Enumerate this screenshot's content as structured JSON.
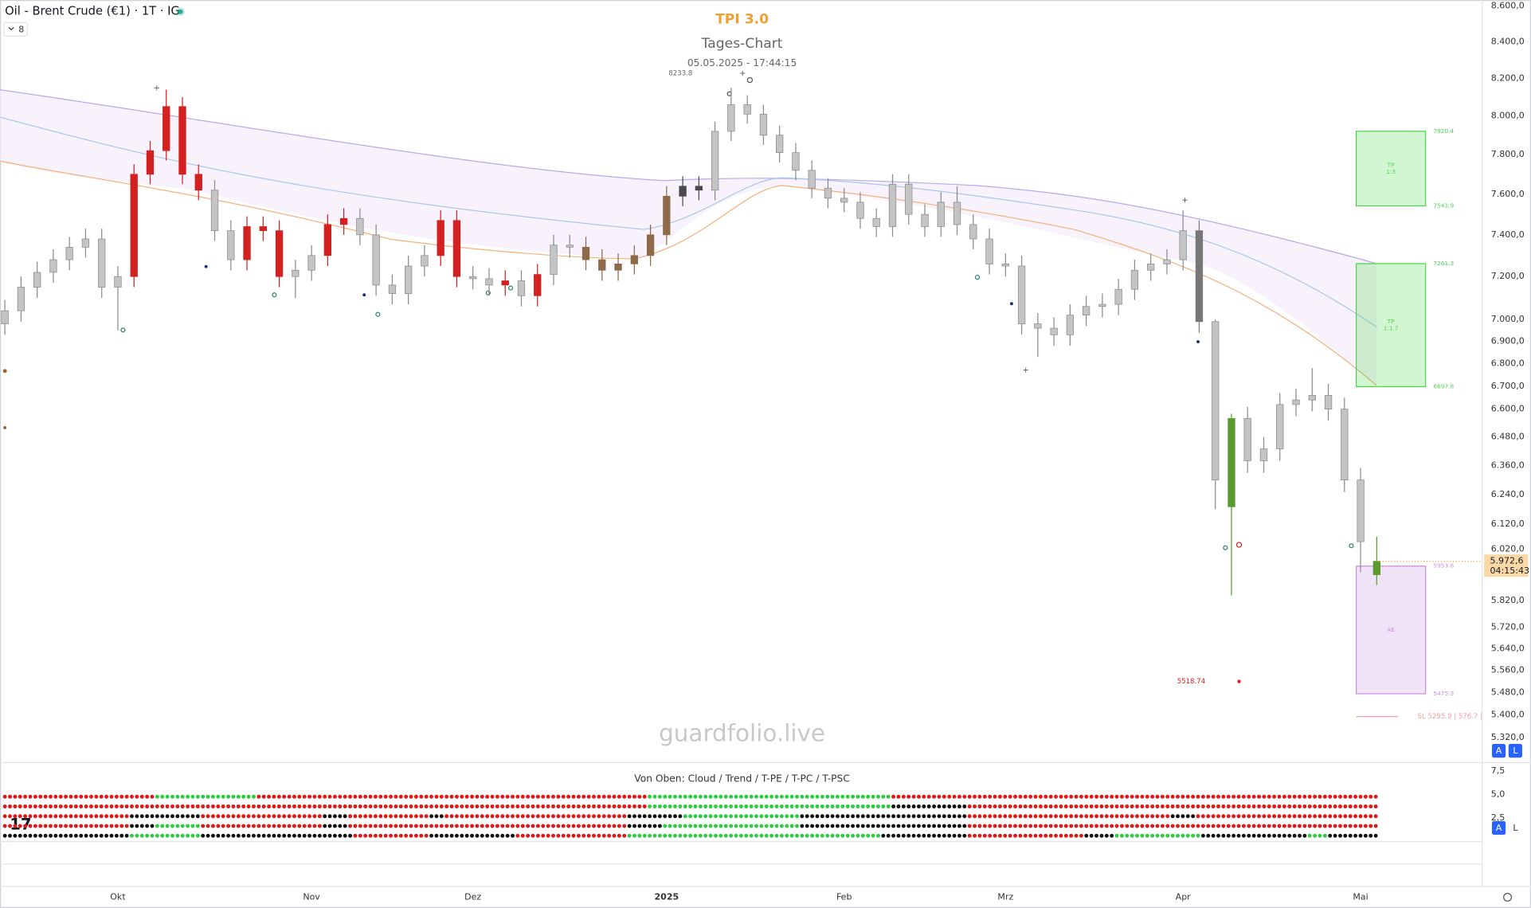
{
  "chart_data": {
    "type": "candlestick",
    "title": "Oil - Brent Crude (€1) · 1T · IG",
    "interval_badge": "8",
    "indicator_title": "TPI 3.0",
    "subtitle": "Tages-Chart",
    "timestamp": "05.05.2025 - 17:44:15",
    "watermark": "guardfolio.live",
    "log_scale": true,
    "ylim": [
      5237,
      8633
    ],
    "yticks": [
      {
        "value": 8600,
        "label": "8.600,0"
      },
      {
        "value": 8400,
        "label": "8.400,0"
      },
      {
        "value": 8200,
        "label": "8.200,0"
      },
      {
        "value": 8000,
        "label": "8.000,0"
      },
      {
        "value": 7800,
        "label": "7.800,0"
      },
      {
        "value": 7600,
        "label": "7.600,0"
      },
      {
        "value": 7400,
        "label": "7.400,0"
      },
      {
        "value": 7200,
        "label": "7.200,0"
      },
      {
        "value": 7000,
        "label": "7.000,0"
      },
      {
        "value": 6900,
        "label": "6.900,0"
      },
      {
        "value": 6800,
        "label": "6.800,0"
      },
      {
        "value": 6700,
        "label": "6.700,0"
      },
      {
        "value": 6600,
        "label": "6.600,0"
      },
      {
        "value": 6480,
        "label": "6.480,0"
      },
      {
        "value": 6360,
        "label": "6.360,0"
      },
      {
        "value": 6240,
        "label": "6.240,0"
      },
      {
        "value": 6120,
        "label": "6.120,0"
      },
      {
        "value": 6020,
        "label": "6.020,0"
      },
      {
        "value": 5820,
        "label": "5.820,0"
      },
      {
        "value": 5720,
        "label": "5.720,0"
      },
      {
        "value": 5640,
        "label": "5.640,0"
      },
      {
        "value": 5560,
        "label": "5.560,0"
      },
      {
        "value": 5480,
        "label": "5.480,0"
      },
      {
        "value": 5400,
        "label": "5.400,0"
      },
      {
        "value": 5320,
        "label": "5.320,0"
      }
    ],
    "categories": [
      null,
      null,
      null,
      null,
      null,
      null,
      null,
      "Okt",
      null,
      null,
      null,
      null,
      null,
      null,
      null,
      null,
      null,
      null,
      null,
      "Nov",
      null,
      null,
      null,
      null,
      null,
      null,
      null,
      null,
      null,
      "Dez",
      null,
      null,
      null,
      null,
      null,
      null,
      null,
      null,
      null,
      null,
      null,
      "2025",
      null,
      null,
      null,
      null,
      null,
      null,
      null,
      null,
      null,
      null,
      "Feb",
      null,
      null,
      null,
      null,
      null,
      null,
      null,
      null,
      null,
      "Mrz",
      null,
      null,
      null,
      null,
      null,
      null,
      null,
      null,
      null,
      null,
      "Apr",
      null,
      null,
      null,
      null,
      null,
      null,
      null,
      null,
      null,
      null,
      "Mai",
      null
    ],
    "open": [
      6980,
      7040,
      7150,
      7220,
      7280,
      7340,
      7380,
      7150,
      7200,
      7700,
      7820,
      8050,
      7700,
      7620,
      7420,
      7280,
      7440,
      7420,
      7200,
      7230,
      7300,
      7450,
      7480,
      7400,
      7160,
      7120,
      7250,
      7300,
      7470,
      7200,
      7190,
      7160,
      7180,
      7110,
      7210,
      7350,
      7340,
      7280,
      7230,
      7260,
      7300,
      7400,
      7590,
      7640,
      7620,
      7920,
      8060,
      8010,
      7900,
      7810,
      7720,
      7630,
      7580,
      7560,
      7480,
      7440,
      7650,
      7500,
      7440,
      7560,
      7450,
      7380,
      7260,
      7250,
      6980,
      6960,
      6930,
      7020,
      7060,
      7070,
      7140,
      7230,
      7260,
      7280,
      7420,
      6990,
      6190,
      6560,
      6380,
      6430,
      6620,
      6640,
      6660,
      6600,
      6300,
      5920
    ],
    "high": [
      7090,
      7200,
      7270,
      7330,
      7390,
      7430,
      7430,
      7250,
      7750,
      7870,
      8140,
      8100,
      7750,
      7670,
      7470,
      7490,
      7490,
      7470,
      7280,
      7350,
      7500,
      7530,
      7530,
      7450,
      7210,
      7300,
      7350,
      7520,
      7520,
      7250,
      7240,
      7230,
      7230,
      7260,
      7400,
      7400,
      7390,
      7330,
      7310,
      7350,
      7450,
      7640,
      7690,
      7690,
      7970,
      8150,
      8110,
      8060,
      7950,
      7860,
      7770,
      7680,
      7630,
      7610,
      7530,
      7700,
      7700,
      7550,
      7610,
      7640,
      7500,
      7430,
      7310,
      7300,
      7030,
      7010,
      7070,
      7110,
      7120,
      7190,
      7280,
      7310,
      7330,
      7520,
      7470,
      7000,
      6580,
      6610,
      6480,
      6670,
      6690,
      6780,
      6710,
      6650,
      6350,
      6070
    ],
    "low": [
      6930,
      6990,
      7100,
      7170,
      7230,
      7290,
      7100,
      6950,
      7150,
      7650,
      7770,
      7650,
      7570,
      7370,
      7230,
      7230,
      7370,
      7150,
      7100,
      7180,
      7250,
      7400,
      7350,
      7110,
      7070,
      7070,
      7200,
      7250,
      7150,
      7140,
      7110,
      7110,
      7060,
      7060,
      7160,
      7290,
      7230,
      7180,
      7180,
      7210,
      7250,
      7350,
      7540,
      7570,
      7570,
      7870,
      7960,
      7850,
      7760,
      7670,
      7580,
      7530,
      7510,
      7430,
      7390,
      7390,
      7450,
      7390,
      7390,
      7400,
      7330,
      7210,
      7200,
      6930,
      6830,
      6880,
      6880,
      6970,
      7010,
      7020,
      7090,
      7180,
      7210,
      7230,
      6940,
      6180,
      5840,
      6330,
      6330,
      6380,
      6570,
      6590,
      6550,
      6250,
      5930,
      5880
    ],
    "close": [
      7040,
      7150,
      7220,
      7280,
      7340,
      7380,
      7150,
      7200,
      7700,
      7820,
      8050,
      7700,
      7620,
      7420,
      7280,
      7440,
      7420,
      7200,
      7230,
      7300,
      7450,
      7480,
      7400,
      7160,
      7120,
      7250,
      7300,
      7470,
      7200,
      7190,
      7160,
      7180,
      7110,
      7210,
      7350,
      7340,
      7280,
      7230,
      7260,
      7300,
      7400,
      7590,
      7640,
      7620,
      7920,
      8060,
      8010,
      7900,
      7810,
      7720,
      7630,
      7580,
      7560,
      7480,
      7440,
      7650,
      7500,
      7440,
      7560,
      7450,
      7380,
      7260,
      7250,
      6980,
      6960,
      6930,
      7020,
      7060,
      7070,
      7140,
      7230,
      7260,
      7280,
      7420,
      6990,
      6300,
      6560,
      6380,
      6430,
      6620,
      6640,
      6660,
      6600,
      6300,
      6050,
      5972.6
    ],
    "colors": [
      "#c4c4c4",
      "#c4c4c4",
      "#c4c4c4",
      "#c4c4c4",
      "#c4c4c4",
      "#c4c4c4",
      "#c4c4c4",
      "#c4c4c4",
      "#d32020",
      "#d32020",
      "#d32020",
      "#d32020",
      "#d32020",
      "#c4c4c4",
      "#c4c4c4",
      "#d32020",
      "#d32020",
      "#d32020",
      "#c4c4c4",
      "#c4c4c4",
      "#d32020",
      "#d32020",
      "#c4c4c4",
      "#c4c4c4",
      "#c4c4c4",
      "#c4c4c4",
      "#c4c4c4",
      "#d32020",
      "#d32020",
      "#c4c4c4",
      "#c4c4c4",
      "#d32020",
      "#c4c4c4",
      "#d32020",
      "#c4c4c4",
      "#c4c4c4",
      "#8c6a4a",
      "#8c6a4a",
      "#8c6a4a",
      "#8c6a4a",
      "#8c6a4a",
      "#8c6a4a",
      "#4a4a4a",
      "#4a4a4a",
      "#c4c4c4",
      "#c4c4c4",
      "#c4c4c4",
      "#c4c4c4",
      "#c4c4c4",
      "#c4c4c4",
      "#c4c4c4",
      "#c4c4c4",
      "#c4c4c4",
      "#c4c4c4",
      "#c4c4c4",
      "#c4c4c4",
      "#c4c4c4",
      "#c4c4c4",
      "#c4c4c4",
      "#c4c4c4",
      "#c4c4c4",
      "#c4c4c4",
      "#c4c4c4",
      "#c4c4c4",
      "#c4c4c4",
      "#c4c4c4",
      "#c4c4c4",
      "#c4c4c4",
      "#c4c4c4",
      "#c4c4c4",
      "#c4c4c4",
      "#c4c4c4",
      "#c4c4c4",
      "#c4c4c4",
      "#777777",
      "#c4c4c4",
      "#5b9a2e",
      "#c4c4c4",
      "#c4c4c4",
      "#c4c4c4",
      "#c4c4c4",
      "#c4c4c4",
      "#c4c4c4",
      "#c4c4c4",
      "#c4c4c4",
      "#5b9a2e"
    ],
    "last_price": {
      "value": 5972.6,
      "label": "5.972,6"
    },
    "countdown": "04:15:43",
    "zones": [
      {
        "top": 7920.4,
        "bottom": 7541.9,
        "color": "#4cd64c",
        "text": [
          "TP",
          "1:3"
        ]
      },
      {
        "top": 7261.3,
        "bottom": 6697.8,
        "color": "#4cd64c",
        "text": [
          "TP",
          "1:1.7"
        ]
      },
      {
        "top": 5953.8,
        "bottom": 5475.3,
        "color": "#c98ee0",
        "text": [
          "AE"
        ]
      }
    ],
    "annotations": [
      "8233.8",
      "5518.74",
      "SL 5295.9 | 576.7 |"
    ],
    "scale_buttons": [
      "A",
      "L"
    ],
    "panel": {
      "title": "Von Oben: Cloud / Trend / T-PE / T-PC / T-PSC",
      "ylim": [
        0,
        8.3
      ],
      "yticks": [
        {
          "value": 7.5,
          "label": "7,5"
        },
        {
          "value": 5,
          "label": "5,0"
        },
        {
          "value": 2.5,
          "label": "2,5"
        }
      ]
    }
  }
}
